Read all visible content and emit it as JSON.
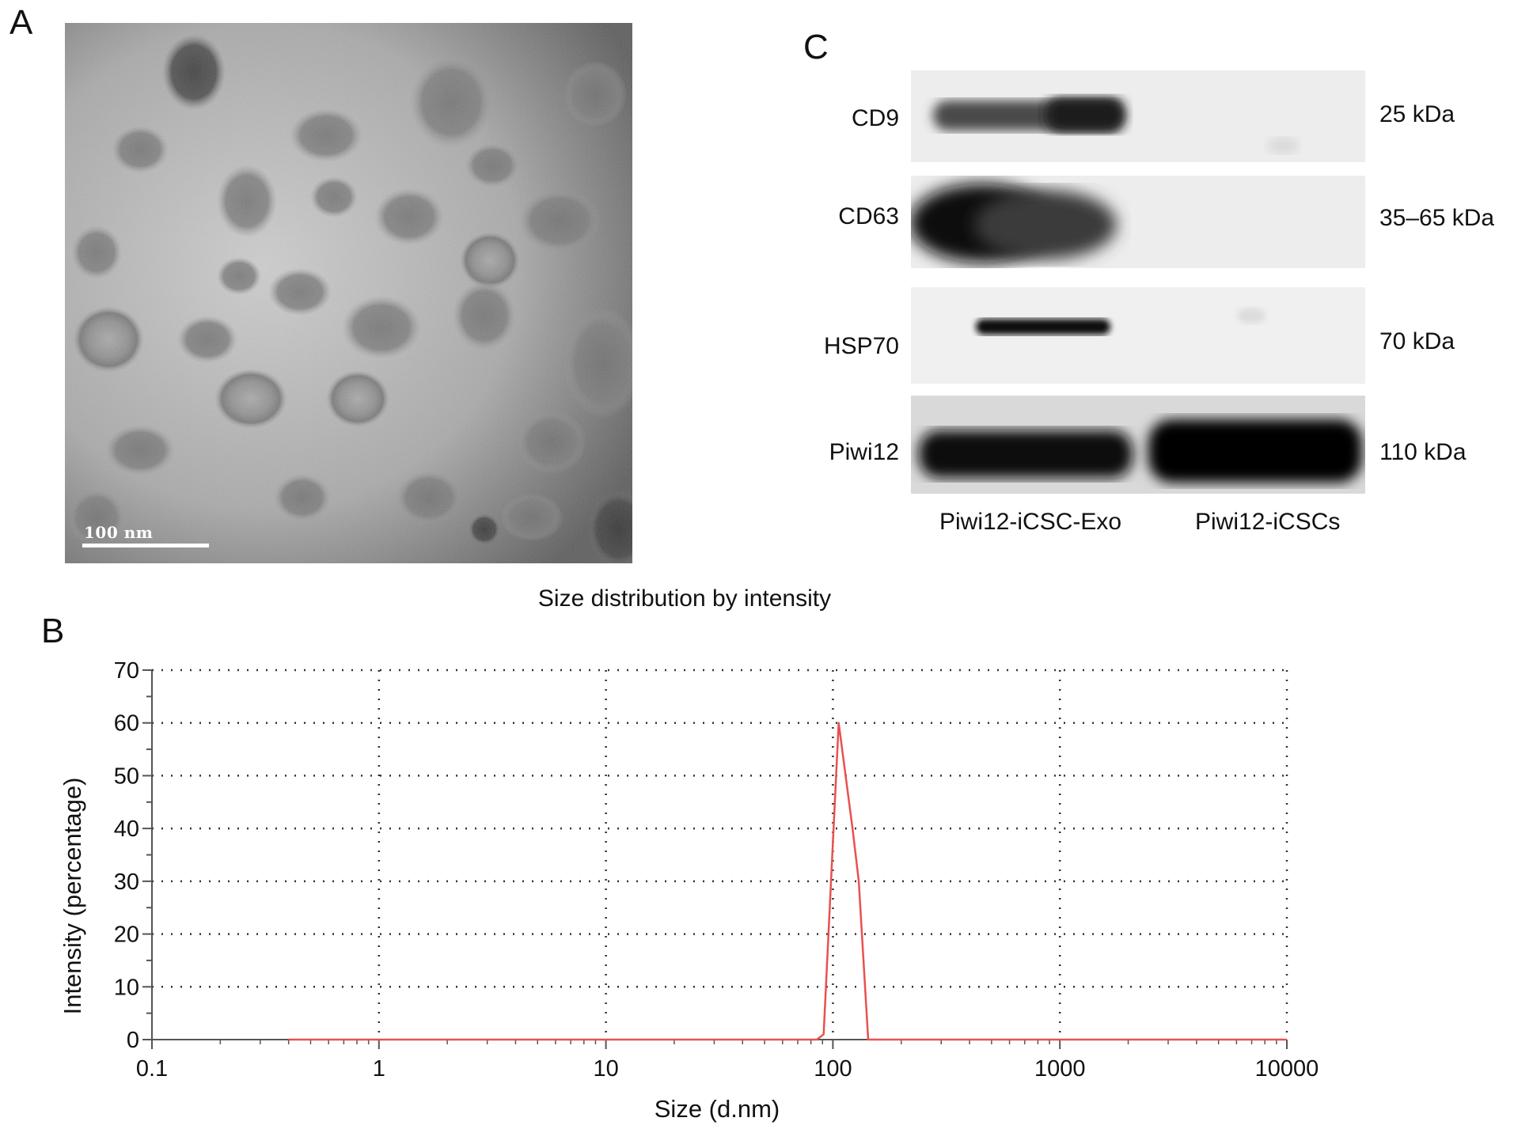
{
  "figure": {
    "panel_a": {
      "letter": "A",
      "scale_bar_label": "100 nm"
    },
    "panel_b": {
      "letter": "B"
    },
    "panel_c": {
      "letter": "C",
      "rows": [
        {
          "protein": "CD9",
          "kda": "25 kDa"
        },
        {
          "protein": "CD63",
          "kda": "35–65 kDa"
        },
        {
          "protein": "HSP70",
          "kda": "70 kDa"
        },
        {
          "protein": "Piwi12",
          "kda": "110 kDa"
        }
      ],
      "columns": [
        "Piwi12-iCSC-Exo",
        "Piwi12-iCSCs"
      ]
    }
  },
  "chart_data": {
    "type": "line",
    "title": "Size distribution by intensity",
    "xlabel": "Size (d.nm)",
    "ylabel": "Intensity (percentage)",
    "x_scale": "log",
    "xlim": [
      0.1,
      10000
    ],
    "ylim": [
      0,
      70
    ],
    "x_ticks": [
      "0.1",
      "1",
      "10",
      "100",
      "1000",
      "10000"
    ],
    "y_ticks": [
      "0",
      "10",
      "20",
      "30",
      "40",
      "50",
      "60",
      "70"
    ],
    "grid": true,
    "series": [
      {
        "color": "#e8514f",
        "x": [
          0.4,
          1,
          10,
          85,
          91,
          106,
          122,
          130,
          143,
          150,
          1000,
          10000
        ],
        "y": [
          0,
          0,
          0,
          0,
          1,
          60,
          40,
          30,
          0,
          0,
          0,
          0
        ]
      }
    ]
  }
}
